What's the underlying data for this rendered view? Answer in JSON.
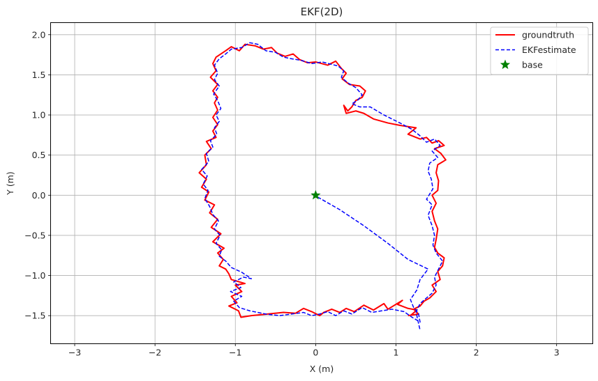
{
  "chart_data": {
    "type": "line",
    "title": "EKF(2D)",
    "xlabel": "X (m)",
    "ylabel": "Y (m)",
    "xlim": [
      -3.3,
      3.45
    ],
    "ylim": [
      -1.85,
      2.15
    ],
    "xticks": [
      -3,
      -2,
      -1,
      0,
      1,
      2,
      3
    ],
    "yticks": [
      -1.5,
      -1.0,
      -0.5,
      0.0,
      0.5,
      1.0,
      1.5,
      2.0
    ],
    "xtick_labels": [
      "−3",
      "−2",
      "−1",
      "0",
      "1",
      "2",
      "3"
    ],
    "ytick_labels": [
      "−1.5",
      "−1.0",
      "−0.5",
      "0.0",
      "0.5",
      "1.0",
      "1.5",
      "2.0"
    ],
    "grid": true,
    "legend_position": "top-right",
    "series": [
      {
        "name": "groundtruth",
        "style": "solid",
        "color": "#ff0000",
        "points": [
          [
            1.18,
            -1.5
          ],
          [
            1.26,
            -1.43
          ],
          [
            1.15,
            -1.41
          ],
          [
            1.02,
            -1.36
          ],
          [
            1.08,
            -1.31
          ],
          [
            0.9,
            -1.42
          ],
          [
            0.85,
            -1.35
          ],
          [
            0.72,
            -1.43
          ],
          [
            0.6,
            -1.37
          ],
          [
            0.48,
            -1.45
          ],
          [
            0.38,
            -1.41
          ],
          [
            0.3,
            -1.46
          ],
          [
            0.2,
            -1.42
          ],
          [
            0.1,
            -1.46
          ],
          [
            0.05,
            -1.5
          ],
          [
            -0.05,
            -1.45
          ],
          [
            -0.15,
            -1.41
          ],
          [
            -0.25,
            -1.47
          ],
          [
            -0.4,
            -1.46
          ],
          [
            -0.6,
            -1.48
          ],
          [
            -0.8,
            -1.5
          ],
          [
            -0.93,
            -1.52
          ],
          [
            -0.96,
            -1.44
          ],
          [
            -1.08,
            -1.38
          ],
          [
            -0.98,
            -1.34
          ],
          [
            -1.05,
            -1.26
          ],
          [
            -0.92,
            -1.2
          ],
          [
            -1.0,
            -1.12
          ],
          [
            -0.88,
            -1.1
          ],
          [
            -1.05,
            -1.05
          ],
          [
            -1.08,
            -0.98
          ],
          [
            -1.12,
            -0.92
          ],
          [
            -1.2,
            -0.88
          ],
          [
            -1.15,
            -0.8
          ],
          [
            -1.22,
            -0.72
          ],
          [
            -1.14,
            -0.66
          ],
          [
            -1.28,
            -0.58
          ],
          [
            -1.18,
            -0.48
          ],
          [
            -1.3,
            -0.4
          ],
          [
            -1.22,
            -0.3
          ],
          [
            -1.32,
            -0.22
          ],
          [
            -1.26,
            -0.12
          ],
          [
            -1.38,
            -0.06
          ],
          [
            -1.33,
            0.04
          ],
          [
            -1.42,
            0.1
          ],
          [
            -1.36,
            0.2
          ],
          [
            -1.45,
            0.28
          ],
          [
            -1.36,
            0.38
          ],
          [
            -1.38,
            0.5
          ],
          [
            -1.3,
            0.58
          ],
          [
            -1.36,
            0.67
          ],
          [
            -1.24,
            0.72
          ],
          [
            -1.28,
            0.8
          ],
          [
            -1.22,
            0.88
          ],
          [
            -1.28,
            0.97
          ],
          [
            -1.22,
            1.06
          ],
          [
            -1.26,
            1.15
          ],
          [
            -1.22,
            1.22
          ],
          [
            -1.28,
            1.3
          ],
          [
            -1.22,
            1.38
          ],
          [
            -1.31,
            1.47
          ],
          [
            -1.24,
            1.55
          ],
          [
            -1.28,
            1.64
          ],
          [
            -1.24,
            1.72
          ],
          [
            -1.12,
            1.8
          ],
          [
            -1.05,
            1.85
          ],
          [
            -0.95,
            1.8
          ],
          [
            -0.88,
            1.88
          ],
          [
            -0.75,
            1.86
          ],
          [
            -0.65,
            1.82
          ],
          [
            -0.55,
            1.84
          ],
          [
            -0.48,
            1.77
          ],
          [
            -0.38,
            1.73
          ],
          [
            -0.28,
            1.76
          ],
          [
            -0.2,
            1.69
          ],
          [
            -0.1,
            1.65
          ],
          [
            0.0,
            1.66
          ],
          [
            0.15,
            1.62
          ],
          [
            0.25,
            1.67
          ],
          [
            0.32,
            1.58
          ],
          [
            0.38,
            1.52
          ],
          [
            0.33,
            1.45
          ],
          [
            0.42,
            1.38
          ],
          [
            0.55,
            1.36
          ],
          [
            0.62,
            1.3
          ],
          [
            0.58,
            1.22
          ],
          [
            0.5,
            1.18
          ],
          [
            0.45,
            1.1
          ],
          [
            0.4,
            1.05
          ],
          [
            0.35,
            1.12
          ],
          [
            0.38,
            1.02
          ],
          [
            0.5,
            1.05
          ],
          [
            0.6,
            1.02
          ],
          [
            0.72,
            0.95
          ],
          [
            0.9,
            0.9
          ],
          [
            1.05,
            0.87
          ],
          [
            1.25,
            0.84
          ],
          [
            1.15,
            0.76
          ],
          [
            1.3,
            0.7
          ],
          [
            1.38,
            0.72
          ],
          [
            1.45,
            0.65
          ],
          [
            1.53,
            0.68
          ],
          [
            1.6,
            0.62
          ],
          [
            1.48,
            0.58
          ],
          [
            1.56,
            0.52
          ],
          [
            1.62,
            0.44
          ],
          [
            1.52,
            0.38
          ],
          [
            1.5,
            0.28
          ],
          [
            1.53,
            0.18
          ],
          [
            1.52,
            0.06
          ],
          [
            1.45,
            0.0
          ],
          [
            1.5,
            -0.1
          ],
          [
            1.45,
            -0.2
          ],
          [
            1.48,
            -0.32
          ],
          [
            1.52,
            -0.42
          ],
          [
            1.5,
            -0.55
          ],
          [
            1.48,
            -0.65
          ],
          [
            1.52,
            -0.72
          ],
          [
            1.6,
            -0.78
          ],
          [
            1.58,
            -0.88
          ],
          [
            1.52,
            -0.95
          ],
          [
            1.55,
            -1.05
          ],
          [
            1.45,
            -1.12
          ],
          [
            1.5,
            -1.2
          ],
          [
            1.42,
            -1.28
          ],
          [
            1.35,
            -1.32
          ],
          [
            1.3,
            -1.38
          ],
          [
            1.22,
            -1.42
          ],
          [
            1.28,
            -1.48
          ],
          [
            1.15,
            -1.5
          ]
        ]
      },
      {
        "name": "EKFestimate",
        "style": "dashed",
        "color": "#0000ff",
        "points": [
          [
            0.0,
            0.0
          ],
          [
            -0.05,
            0.02
          ],
          [
            0.3,
            -0.18
          ],
          [
            0.6,
            -0.38
          ],
          [
            0.9,
            -0.6
          ],
          [
            1.15,
            -0.8
          ],
          [
            1.4,
            -0.92
          ],
          [
            1.3,
            -1.05
          ],
          [
            1.26,
            -1.18
          ],
          [
            1.18,
            -1.3
          ],
          [
            1.22,
            -1.4
          ],
          [
            1.28,
            -1.47
          ],
          [
            1.3,
            -1.58
          ],
          [
            1.2,
            -1.52
          ],
          [
            1.1,
            -1.45
          ],
          [
            0.95,
            -1.42
          ],
          [
            0.82,
            -1.44
          ],
          [
            0.7,
            -1.46
          ],
          [
            0.58,
            -1.4
          ],
          [
            0.45,
            -1.48
          ],
          [
            0.35,
            -1.44
          ],
          [
            0.25,
            -1.5
          ],
          [
            0.15,
            -1.45
          ],
          [
            0.05,
            -1.48
          ],
          [
            -0.05,
            -1.5
          ],
          [
            -0.15,
            -1.46
          ],
          [
            -0.3,
            -1.48
          ],
          [
            -0.45,
            -1.5
          ],
          [
            -0.62,
            -1.48
          ],
          [
            -0.82,
            -1.44
          ],
          [
            -0.95,
            -1.4
          ],
          [
            -1.02,
            -1.32
          ],
          [
            -0.92,
            -1.26
          ],
          [
            -1.06,
            -1.2
          ],
          [
            -0.93,
            -1.15
          ],
          [
            -1.02,
            -1.08
          ],
          [
            -0.9,
            -1.02
          ],
          [
            -0.8,
            -1.04
          ],
          [
            -0.92,
            -0.96
          ],
          [
            -1.05,
            -0.9
          ],
          [
            -1.12,
            -0.82
          ],
          [
            -1.2,
            -0.76
          ],
          [
            -1.17,
            -0.68
          ],
          [
            -1.24,
            -0.6
          ],
          [
            -1.19,
            -0.5
          ],
          [
            -1.26,
            -0.42
          ],
          [
            -1.21,
            -0.32
          ],
          [
            -1.28,
            -0.24
          ],
          [
            -1.32,
            -0.14
          ],
          [
            -1.38,
            -0.04
          ],
          [
            -1.34,
            0.06
          ],
          [
            -1.4,
            0.14
          ],
          [
            -1.35,
            0.24
          ],
          [
            -1.42,
            0.32
          ],
          [
            -1.33,
            0.42
          ],
          [
            -1.36,
            0.52
          ],
          [
            -1.28,
            0.6
          ],
          [
            -1.31,
            0.68
          ],
          [
            -1.23,
            0.76
          ],
          [
            -1.26,
            0.84
          ],
          [
            -1.2,
            0.92
          ],
          [
            -1.24,
            1.0
          ],
          [
            -1.18,
            1.08
          ],
          [
            -1.22,
            1.18
          ],
          [
            -1.27,
            1.26
          ],
          [
            -1.2,
            1.36
          ],
          [
            -1.26,
            1.44
          ],
          [
            -1.22,
            1.52
          ],
          [
            -1.26,
            1.62
          ],
          [
            -1.2,
            1.7
          ],
          [
            -1.12,
            1.76
          ],
          [
            -1.05,
            1.82
          ],
          [
            -0.92,
            1.84
          ],
          [
            -0.82,
            1.9
          ],
          [
            -0.72,
            1.88
          ],
          [
            -0.62,
            1.8
          ],
          [
            -0.5,
            1.78
          ],
          [
            -0.4,
            1.72
          ],
          [
            -0.3,
            1.7
          ],
          [
            -0.18,
            1.68
          ],
          [
            -0.05,
            1.64
          ],
          [
            0.08,
            1.66
          ],
          [
            0.2,
            1.63
          ],
          [
            0.28,
            1.61
          ],
          [
            0.35,
            1.55
          ],
          [
            0.32,
            1.47
          ],
          [
            0.4,
            1.4
          ],
          [
            0.5,
            1.34
          ],
          [
            0.58,
            1.25
          ],
          [
            0.52,
            1.18
          ],
          [
            0.45,
            1.14
          ],
          [
            0.55,
            1.1
          ],
          [
            0.68,
            1.1
          ],
          [
            0.85,
            1.0
          ],
          [
            1.05,
            0.9
          ],
          [
            1.2,
            0.82
          ],
          [
            1.3,
            0.74
          ],
          [
            1.38,
            0.66
          ],
          [
            1.48,
            0.7
          ],
          [
            1.55,
            0.62
          ],
          [
            1.45,
            0.55
          ],
          [
            1.52,
            0.47
          ],
          [
            1.42,
            0.4
          ],
          [
            1.4,
            0.3
          ],
          [
            1.44,
            0.2
          ],
          [
            1.46,
            0.08
          ],
          [
            1.38,
            -0.05
          ],
          [
            1.45,
            -0.12
          ],
          [
            1.4,
            -0.25
          ],
          [
            1.45,
            -0.38
          ],
          [
            1.48,
            -0.5
          ],
          [
            1.46,
            -0.62
          ],
          [
            1.5,
            -0.72
          ],
          [
            1.58,
            -0.82
          ],
          [
            1.53,
            -0.92
          ],
          [
            1.48,
            -1.02
          ],
          [
            1.5,
            -1.12
          ],
          [
            1.45,
            -1.22
          ],
          [
            1.38,
            -1.28
          ],
          [
            1.3,
            -1.35
          ],
          [
            1.25,
            -1.45
          ],
          [
            1.27,
            -1.55
          ],
          [
            1.3,
            -1.68
          ]
        ]
      },
      {
        "name": "base",
        "style": "marker-star",
        "color": "#008000",
        "points": [
          [
            0.0,
            0.0
          ]
        ]
      }
    ]
  }
}
